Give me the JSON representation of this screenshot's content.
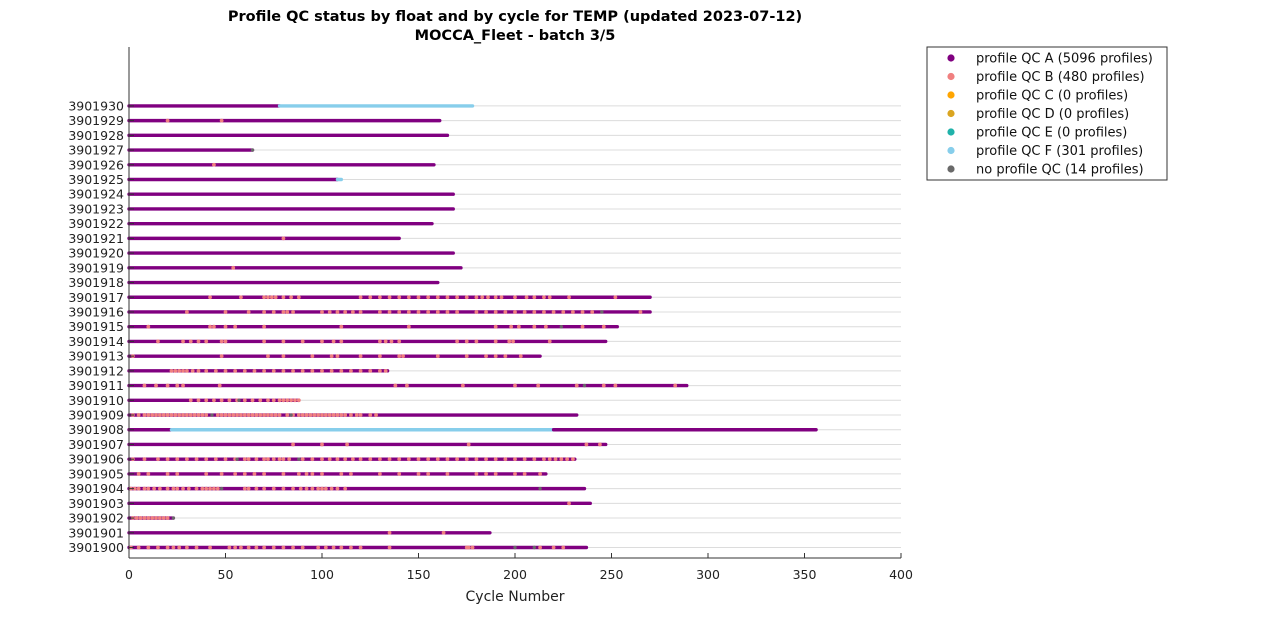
{
  "chart_data": {
    "type": "scatter",
    "title": "Profile QC status by float and by cycle for TEMP (updated 2023-07-12)",
    "subtitle": "MOCCA_Fleet - batch 3/5",
    "xlabel": "Cycle Number",
    "ylabel": "",
    "xlim": [
      0,
      400
    ],
    "xticks": [
      0,
      50,
      100,
      150,
      200,
      250,
      300,
      350,
      400
    ],
    "grid": true,
    "legend_position": "outside-top-right",
    "colors": {
      "A": "#800080",
      "B": "#f08080",
      "C": "#ffa500",
      "D": "#daa520",
      "E": "#20b2aa",
      "F": "#87ceeb",
      "none": "#696969"
    },
    "legend": [
      {
        "key": "A",
        "label": "profile QC A (5096 profiles)"
      },
      {
        "key": "B",
        "label": "profile QC B (480 profiles)"
      },
      {
        "key": "C",
        "label": "profile QC C (0 profiles)"
      },
      {
        "key": "D",
        "label": "profile QC D (0 profiles)"
      },
      {
        "key": "E",
        "label": "profile QC E (0 profiles)"
      },
      {
        "key": "F",
        "label": "profile QC F (301 profiles)"
      },
      {
        "key": "none",
        "label": "no profile QC (14 profiles)"
      }
    ],
    "floats": [
      {
        "id": "3901900",
        "segments": [
          [
            0,
            237,
            "A"
          ]
        ],
        "bmarks": [
          1,
          5,
          10,
          15,
          20,
          23,
          26,
          30,
          35,
          42,
          52,
          55,
          58,
          62,
          66,
          70,
          75,
          80,
          85,
          90,
          98,
          102,
          106,
          110,
          115,
          120,
          135,
          175,
          176,
          178,
          213,
          220,
          225
        ],
        "nmarks": [
          200,
          210
        ]
      },
      {
        "id": "3901901",
        "segments": [
          [
            0,
            187,
            "A"
          ]
        ],
        "bmarks": [
          135,
          163
        ],
        "nmarks": []
      },
      {
        "id": "3901902",
        "segments": [
          [
            0,
            23,
            "A"
          ]
        ],
        "bmarks": [
          2,
          4,
          6,
          8,
          10,
          12,
          14,
          16,
          18,
          20
        ],
        "nmarks": [
          23
        ]
      },
      {
        "id": "3901903",
        "segments": [
          [
            0,
            239,
            "A"
          ]
        ],
        "bmarks": [
          228
        ],
        "nmarks": []
      },
      {
        "id": "3901904",
        "segments": [
          [
            0,
            236,
            "A"
          ]
        ],
        "bmarks": [
          1,
          3,
          5,
          8,
          10,
          13,
          16,
          20,
          23,
          25,
          28,
          31,
          35,
          38,
          40,
          42,
          44,
          46,
          60,
          62,
          66,
          70,
          75,
          80,
          85,
          89,
          92,
          95,
          98,
          100,
          102,
          105,
          108,
          112
        ],
        "nmarks": [
          48,
          213
        ]
      },
      {
        "id": "3901905",
        "segments": [
          [
            0,
            216,
            "A"
          ]
        ],
        "bmarks": [
          5,
          10,
          20,
          25,
          40,
          48,
          55,
          60,
          65,
          70,
          80,
          88,
          92,
          95,
          100,
          110,
          115,
          130,
          140,
          150,
          155,
          165,
          180,
          185,
          190,
          200,
          205,
          213
        ],
        "nmarks": []
      },
      {
        "id": "3901906",
        "segments": [
          [
            0,
            231,
            "A"
          ]
        ],
        "bmarks": [
          2,
          8,
          15,
          20,
          25,
          30,
          35,
          40,
          45,
          50,
          55,
          60,
          62,
          66,
          70,
          72,
          75,
          78,
          80,
          83,
          90,
          95,
          100,
          104,
          108,
          112,
          116,
          120,
          125,
          130,
          135,
          140,
          145,
          150,
          155,
          160,
          165,
          170,
          175,
          180,
          185,
          190,
          195,
          200,
          205,
          210,
          215,
          218,
          221,
          224,
          227,
          230
        ],
        "nmarks": [
          56,
          88
        ]
      },
      {
        "id": "3901907",
        "segments": [
          [
            0,
            247,
            "A"
          ]
        ],
        "bmarks": [
          85,
          100,
          113,
          176,
          237,
          244
        ],
        "nmarks": []
      },
      {
        "id": "3901908",
        "segments": [
          [
            0,
            22,
            "A"
          ],
          [
            22,
            220,
            "F"
          ],
          [
            220,
            356,
            "A"
          ]
        ],
        "bmarks": [],
        "nmarks": []
      },
      {
        "id": "3901909",
        "segments": [
          [
            0,
            232,
            "A"
          ]
        ],
        "bmarks": [
          2,
          5,
          8,
          10,
          12,
          14,
          16,
          18,
          20,
          22,
          24,
          26,
          28,
          30,
          32,
          34,
          36,
          38,
          40,
          46,
          48,
          50,
          52,
          54,
          56,
          58,
          60,
          62,
          64,
          66,
          68,
          70,
          72,
          74,
          76,
          78,
          82,
          85,
          88,
          90,
          92,
          94,
          96,
          98,
          100,
          102,
          104,
          106,
          108,
          110,
          112,
          115,
          118,
          120,
          125,
          128
        ],
        "nmarks": [
          43,
          84
        ]
      },
      {
        "id": "3901910",
        "segments": [
          [
            0,
            88,
            "A"
          ]
        ],
        "bmarks": [
          32,
          36,
          40,
          44,
          48,
          52,
          56,
          60,
          64,
          68,
          72,
          75,
          78,
          80,
          82,
          84,
          86,
          88
        ],
        "nmarks": [
          57
        ]
      },
      {
        "id": "3901911",
        "segments": [
          [
            0,
            289,
            "A"
          ]
        ],
        "bmarks": [
          8,
          14,
          20,
          25,
          28,
          47,
          138,
          144,
          173,
          200,
          212,
          232,
          246,
          252,
          283
        ],
        "nmarks": [
          236
        ]
      },
      {
        "id": "3901912",
        "segments": [
          [
            0,
            134,
            "A"
          ]
        ],
        "bmarks": [
          22,
          24,
          26,
          28,
          30,
          33,
          36,
          40,
          45,
          50,
          55,
          60,
          65,
          70,
          75,
          80,
          85,
          90,
          95,
          100,
          105,
          110,
          115,
          120,
          125,
          130,
          133
        ],
        "nmarks": []
      },
      {
        "id": "3901913",
        "segments": [
          [
            0,
            213,
            "A"
          ]
        ],
        "bmarks": [
          2,
          48,
          72,
          80,
          95,
          105,
          108,
          120,
          130,
          140,
          142,
          160,
          175,
          185,
          190,
          195,
          203
        ],
        "nmarks": []
      },
      {
        "id": "3901914",
        "segments": [
          [
            0,
            247,
            "A"
          ]
        ],
        "bmarks": [
          15,
          28,
          32,
          36,
          40,
          48,
          50,
          70,
          80,
          90,
          100,
          106,
          110,
          130,
          133,
          136,
          140,
          170,
          175,
          180,
          190,
          197,
          199,
          218
        ],
        "nmarks": []
      },
      {
        "id": "3901915",
        "segments": [
          [
            0,
            253,
            "A"
          ]
        ],
        "bmarks": [
          10,
          42,
          44,
          50,
          55,
          70,
          110,
          145,
          190,
          198,
          202,
          210,
          216,
          235,
          246
        ],
        "nmarks": [
          224
        ]
      },
      {
        "id": "3901916",
        "segments": [
          [
            0,
            270,
            "A"
          ]
        ],
        "bmarks": [
          30,
          50,
          62,
          70,
          75,
          80,
          82,
          85,
          100,
          104,
          108,
          112,
          116,
          120,
          130,
          135,
          140,
          145,
          150,
          155,
          160,
          165,
          170,
          180,
          185,
          190,
          195,
          200,
          205,
          210,
          215,
          220,
          225,
          230,
          235,
          240,
          265
        ],
        "nmarks": [
          245
        ]
      },
      {
        "id": "3901917",
        "segments": [
          [
            0,
            270,
            "A"
          ]
        ],
        "bmarks": [
          42,
          58,
          70,
          72,
          74,
          76,
          80,
          84,
          88,
          120,
          125,
          130,
          135,
          140,
          145,
          150,
          155,
          160,
          165,
          170,
          175,
          180,
          183,
          186,
          190,
          193,
          200,
          206,
          210,
          215,
          218,
          228,
          252
        ],
        "nmarks": []
      },
      {
        "id": "3901918",
        "segments": [
          [
            0,
            160,
            "A"
          ]
        ],
        "bmarks": [],
        "nmarks": []
      },
      {
        "id": "3901919",
        "segments": [
          [
            0,
            172,
            "A"
          ]
        ],
        "bmarks": [
          54
        ],
        "nmarks": []
      },
      {
        "id": "3901920",
        "segments": [
          [
            0,
            168,
            "A"
          ]
        ],
        "bmarks": [],
        "nmarks": []
      },
      {
        "id": "3901921",
        "segments": [
          [
            0,
            140,
            "A"
          ]
        ],
        "bmarks": [
          80
        ],
        "nmarks": []
      },
      {
        "id": "3901922",
        "segments": [
          [
            0,
            157,
            "A"
          ]
        ],
        "bmarks": [],
        "nmarks": []
      },
      {
        "id": "3901923",
        "segments": [
          [
            0,
            168,
            "A"
          ]
        ],
        "bmarks": [],
        "nmarks": []
      },
      {
        "id": "3901924",
        "segments": [
          [
            0,
            168,
            "A"
          ]
        ],
        "bmarks": [],
        "nmarks": []
      },
      {
        "id": "3901925",
        "segments": [
          [
            0,
            108,
            "A"
          ],
          [
            108,
            110,
            "F"
          ]
        ],
        "bmarks": [],
        "nmarks": []
      },
      {
        "id": "3901926",
        "segments": [
          [
            0,
            158,
            "A"
          ]
        ],
        "bmarks": [
          44
        ],
        "nmarks": []
      },
      {
        "id": "3901927",
        "segments": [
          [
            0,
            64,
            "A"
          ]
        ],
        "bmarks": [],
        "nmarks": [
          64
        ]
      },
      {
        "id": "3901928",
        "segments": [
          [
            0,
            165,
            "A"
          ]
        ],
        "bmarks": [],
        "nmarks": []
      },
      {
        "id": "3901929",
        "segments": [
          [
            0,
            161,
            "A"
          ]
        ],
        "bmarks": [
          20,
          48
        ],
        "nmarks": []
      },
      {
        "id": "3901930",
        "segments": [
          [
            0,
            78,
            "A"
          ],
          [
            78,
            178,
            "F"
          ]
        ],
        "bmarks": [],
        "nmarks": []
      }
    ]
  }
}
